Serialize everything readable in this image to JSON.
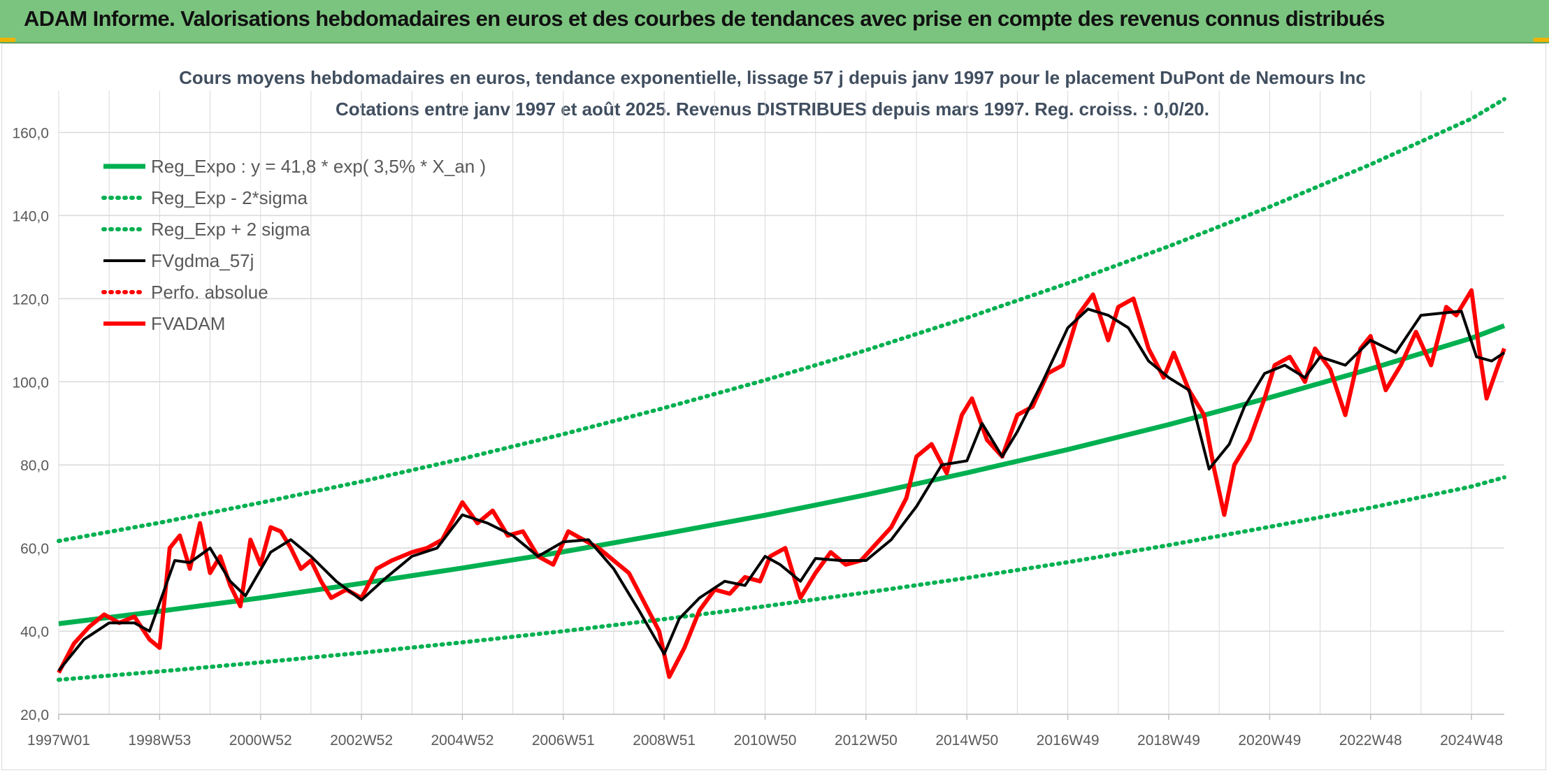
{
  "header": {
    "title": "ADAM Informe. Valorisations hebdomadaires en euros et des courbes de tendances avec prise en compte des revenus connus distribués"
  },
  "colors": {
    "banner": "#7bc47f",
    "reg_expo": "#00b050",
    "fvgdma": "#000000",
    "fvadam": "#ff0000",
    "perfo": "#ff0000"
  },
  "chart_data": {
    "type": "line",
    "title": "Cours moyens hebdomadaires en euros, tendance exponentielle, lissage 57 j depuis janv 1997 pour le placement DuPont de Nemours Inc",
    "subtitle": "Cotations entre janv 1997 et août 2025. Revenus DISTRIBUES depuis mars 1997. Reg. croiss. : 0,0/20.",
    "xlabel": "",
    "ylabel": "",
    "ylim": [
      20,
      170
    ],
    "yticks": [
      "20,0",
      "40,0",
      "60,0",
      "80,0",
      "100,0",
      "120,0",
      "140,0",
      "160,0"
    ],
    "xlim": [
      1997.0,
      2025.65
    ],
    "xticks": [
      {
        "label": "1997W01",
        "x": 1997.0
      },
      {
        "label": "1998W53",
        "x": 1999.0
      },
      {
        "label": "2000W52",
        "x": 2001.0
      },
      {
        "label": "2002W52",
        "x": 2003.0
      },
      {
        "label": "2004W52",
        "x": 2005.0
      },
      {
        "label": "2006W51",
        "x": 2007.0
      },
      {
        "label": "2008W51",
        "x": 2009.0
      },
      {
        "label": "2010W50",
        "x": 2011.0
      },
      {
        "label": "2012W50",
        "x": 2013.0
      },
      {
        "label": "2014W50",
        "x": 2015.0
      },
      {
        "label": "2016W49",
        "x": 2017.0
      },
      {
        "label": "2018W49",
        "x": 2019.0
      },
      {
        "label": "2020W49",
        "x": 2021.0
      },
      {
        "label": "2022W48",
        "x": 2023.0
      },
      {
        "label": "2024W48",
        "x": 2025.0
      }
    ],
    "grid": true,
    "legend_position": "top-left",
    "series": [
      {
        "name": "Reg_Expo : y = 41,8 * exp( 3,5% *  X_an )",
        "style": "solid-thick",
        "color": "#00b050",
        "x": [
          1997.0,
          1999.0,
          2001.0,
          2003.0,
          2005.0,
          2007.0,
          2009.0,
          2011.0,
          2013.0,
          2015.0,
          2017.0,
          2019.0,
          2021.0,
          2023.0,
          2025.0,
          2025.65
        ],
        "y": [
          41.8,
          44.8,
          48.0,
          51.5,
          55.2,
          59.1,
          63.4,
          67.9,
          72.8,
          78.1,
          83.7,
          89.7,
          96.2,
          103.1,
          110.5,
          113.5
        ]
      },
      {
        "name": "Reg_Exp - 2*sigma",
        "style": "dotted",
        "color": "#00b050",
        "x": [
          1997.0,
          1999.0,
          2001.0,
          2003.0,
          2005.0,
          2007.0,
          2009.0,
          2011.0,
          2013.0,
          2015.0,
          2017.0,
          2019.0,
          2021.0,
          2023.0,
          2025.0,
          2025.65
        ],
        "y": [
          28.3,
          30.3,
          32.5,
          34.8,
          37.3,
          40.0,
          42.9,
          46.0,
          49.3,
          52.8,
          56.6,
          60.7,
          65.1,
          69.7,
          74.8,
          77.0
        ]
      },
      {
        "name": "Reg_Exp + 2 sigma",
        "style": "dotted",
        "color": "#00b050",
        "x": [
          1997.0,
          1999.0,
          2001.0,
          2003.0,
          2005.0,
          2007.0,
          2009.0,
          2011.0,
          2013.0,
          2015.0,
          2017.0,
          2019.0,
          2021.0,
          2023.0,
          2025.0,
          2025.65
        ],
        "y": [
          61.7,
          66.1,
          70.9,
          76.0,
          81.5,
          87.4,
          93.7,
          100.4,
          107.6,
          115.4,
          123.7,
          132.6,
          142.1,
          152.3,
          163.3,
          168.0
        ]
      },
      {
        "name": "FVgdma_57j",
        "style": "solid",
        "color": "#000000",
        "x": [
          1997.0,
          1997.5,
          1998.0,
          1998.5,
          1998.8,
          1999.3,
          1999.6,
          2000.0,
          2000.4,
          2000.7,
          2001.2,
          2001.6,
          2002.0,
          2002.5,
          2003.0,
          2003.5,
          2004.0,
          2004.5,
          2005.0,
          2005.5,
          2006.0,
          2006.5,
          2007.0,
          2007.5,
          2008.0,
          2008.5,
          2009.0,
          2009.3,
          2009.7,
          2010.2,
          2010.6,
          2011.0,
          2011.3,
          2011.7,
          2012.0,
          2012.5,
          2013.0,
          2013.5,
          2014.0,
          2014.5,
          2015.0,
          2015.3,
          2015.7,
          2016.0,
          2016.5,
          2017.0,
          2017.4,
          2017.8,
          2018.2,
          2018.6,
          2019.0,
          2019.4,
          2019.8,
          2020.2,
          2020.5,
          2020.9,
          2021.3,
          2021.7,
          2022.0,
          2022.5,
          2023.0,
          2023.5,
          2024.0,
          2024.4,
          2024.8,
          2025.1,
          2025.4,
          2025.65
        ],
        "y": [
          30.5,
          38.0,
          42.0,
          42.0,
          40.0,
          57.0,
          56.5,
          60.0,
          52.0,
          48.5,
          59.0,
          62.0,
          58.0,
          52.0,
          47.5,
          53.0,
          58.0,
          60.0,
          68.0,
          66.0,
          63.0,
          58.0,
          61.5,
          62.0,
          55.0,
          45.0,
          34.5,
          43.0,
          48.0,
          52.0,
          51.0,
          58.0,
          56.0,
          52.0,
          57.5,
          57.0,
          57.0,
          62.0,
          70.0,
          80.0,
          81.0,
          90.0,
          82.0,
          88.0,
          100.0,
          113.0,
          117.5,
          116.0,
          113.0,
          105.0,
          101.0,
          98.0,
          79.0,
          85.0,
          94.0,
          102.0,
          104.0,
          101.0,
          106.0,
          104.0,
          110.0,
          107.0,
          116.0,
          116.5,
          117.0,
          106.0,
          105.0,
          107.0
        ]
      },
      {
        "name": "Perfo. absolue",
        "style": "dotted",
        "color": "#ff0000",
        "x": [],
        "y": []
      },
      {
        "name": "FVADAM",
        "style": "solid-thick",
        "color": "#ff0000",
        "x": [
          1997.0,
          1997.3,
          1997.6,
          1997.9,
          1998.2,
          1998.5,
          1998.8,
          1999.0,
          1999.2,
          1999.4,
          1999.6,
          1999.8,
          2000.0,
          2000.2,
          2000.4,
          2000.6,
          2000.8,
          2001.0,
          2001.2,
          2001.4,
          2001.6,
          2001.8,
          2002.0,
          2002.2,
          2002.4,
          2002.7,
          2003.0,
          2003.3,
          2003.6,
          2004.0,
          2004.3,
          2004.6,
          2005.0,
          2005.3,
          2005.6,
          2005.9,
          2006.2,
          2006.5,
          2006.8,
          2007.1,
          2007.4,
          2007.7,
          2008.0,
          2008.3,
          2008.6,
          2008.9,
          2009.1,
          2009.4,
          2009.7,
          2010.0,
          2010.3,
          2010.6,
          2010.9,
          2011.1,
          2011.4,
          2011.7,
          2012.0,
          2012.3,
          2012.6,
          2012.9,
          2013.2,
          2013.5,
          2013.8,
          2014.0,
          2014.3,
          2014.6,
          2014.9,
          2015.1,
          2015.4,
          2015.7,
          2016.0,
          2016.3,
          2016.6,
          2016.9,
          2017.2,
          2017.5,
          2017.8,
          2018.0,
          2018.3,
          2018.6,
          2018.9,
          2019.1,
          2019.4,
          2019.7,
          2019.9,
          2020.1,
          2020.3,
          2020.6,
          2020.9,
          2021.1,
          2021.4,
          2021.7,
          2021.9,
          2022.2,
          2022.5,
          2022.8,
          2023.0,
          2023.3,
          2023.6,
          2023.9,
          2024.2,
          2024.5,
          2024.7,
          2024.9,
          2025.0,
          2025.15,
          2025.3,
          2025.5,
          2025.65
        ],
        "y": [
          30.0,
          37.0,
          41.0,
          44.0,
          42.0,
          43.5,
          38.0,
          36.0,
          60.0,
          63.0,
          55.0,
          66.0,
          54.0,
          58.0,
          51.0,
          46.0,
          62.0,
          56.0,
          65.0,
          64.0,
          60.0,
          55.0,
          57.0,
          52.0,
          48.0,
          50.0,
          48.0,
          55.0,
          57.0,
          59.0,
          60.0,
          62.0,
          71.0,
          66.0,
          69.0,
          63.0,
          64.0,
          58.0,
          56.0,
          64.0,
          62.0,
          60.0,
          57.0,
          54.0,
          47.0,
          40.0,
          29.0,
          36.0,
          45.0,
          50.0,
          49.0,
          53.0,
          52.0,
          58.0,
          60.0,
          48.0,
          54.0,
          59.0,
          56.0,
          57.0,
          61.0,
          65.0,
          72.0,
          82.0,
          85.0,
          78.0,
          92.0,
          96.0,
          86.0,
          82.0,
          92.0,
          94.0,
          102.0,
          104.0,
          116.0,
          121.0,
          110.0,
          118.0,
          120.0,
          108.0,
          101.0,
          107.0,
          98.0,
          92.0,
          79.0,
          68.0,
          80.0,
          86.0,
          96.0,
          104.0,
          106.0,
          100.0,
          108.0,
          103.0,
          92.0,
          108.0,
          111.0,
          98.0,
          104.0,
          112.0,
          104.0,
          118.0,
          116.0,
          120.0,
          122.0,
          108.0,
          96.0,
          103.0,
          108.0
        ]
      }
    ]
  }
}
